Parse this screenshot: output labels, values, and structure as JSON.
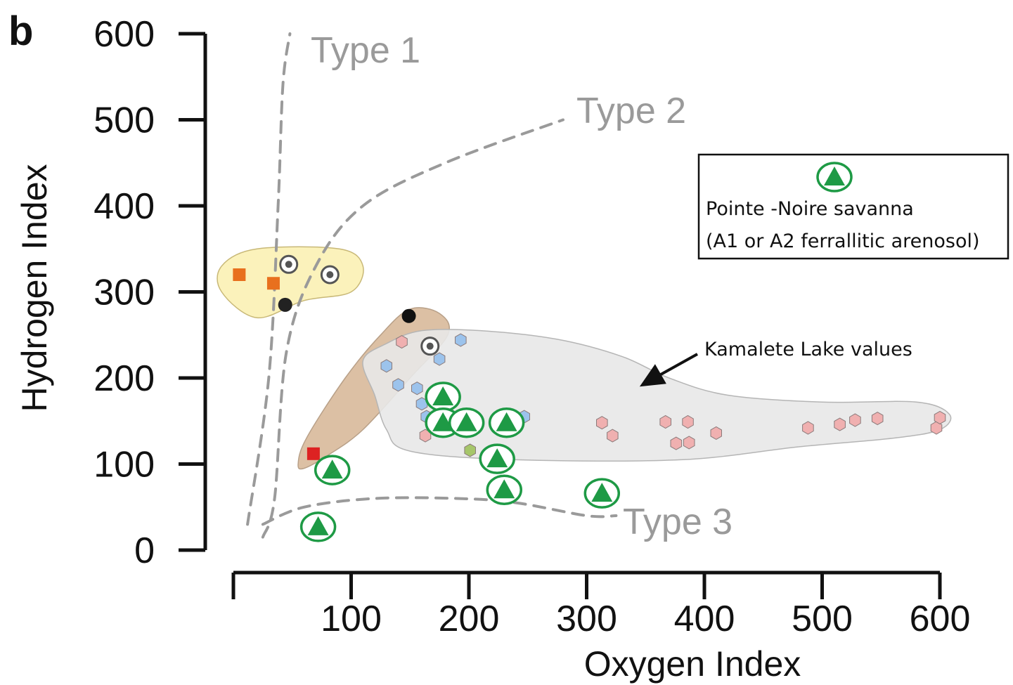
{
  "panel_label": "b",
  "chart_data": {
    "type": "scatter",
    "xlabel": "Oxygen Index",
    "ylabel": "Hydrogen Index",
    "xlim": [
      0,
      600
    ],
    "ylim": [
      0,
      600
    ],
    "x_ticks": [
      100,
      200,
      300,
      400,
      500,
      600
    ],
    "y_ticks": [
      0,
      100,
      200,
      300,
      400,
      500,
      600
    ],
    "kerogen_type_curves": [
      {
        "label": "Type 1",
        "points": [
          [
            12,
            30
          ],
          [
            30,
            200
          ],
          [
            38,
            400
          ],
          [
            42,
            540
          ],
          [
            48,
            600
          ]
        ]
      },
      {
        "label": "Type 2",
        "points": [
          [
            25,
            15
          ],
          [
            35,
            60
          ],
          [
            45,
            230
          ],
          [
            70,
            330
          ],
          [
            110,
            400
          ],
          [
            180,
            450
          ],
          [
            280,
            500
          ]
        ]
      },
      {
        "label": "Type 3",
        "points": [
          [
            25,
            30
          ],
          [
            60,
            50
          ],
          [
            120,
            60
          ],
          [
            190,
            60
          ],
          [
            240,
            55
          ],
          [
            300,
            40
          ],
          [
            325,
            40
          ]
        ]
      }
    ],
    "groups": [
      {
        "fill": "#fbf1b4",
        "stroke": "#c8b877",
        "outline": [
          [
            -10,
            330
          ],
          [
            20,
            350
          ],
          [
            90,
            350
          ],
          [
            110,
            330
          ],
          [
            100,
            300
          ],
          [
            60,
            290
          ],
          [
            20,
            270
          ],
          [
            -10,
            300
          ]
        ],
        "points": [
          {
            "x": 5,
            "y": 320,
            "marker": "square",
            "color": "#e8701e"
          },
          {
            "x": 34,
            "y": 310,
            "marker": "square",
            "color": "#e8701e"
          },
          {
            "x": 47,
            "y": 332,
            "marker": "ring",
            "color": "#555555"
          },
          {
            "x": 82,
            "y": 320,
            "marker": "ring",
            "color": "#555555"
          },
          {
            "x": 44,
            "y": 285,
            "marker": "dot",
            "color": "#222222"
          }
        ]
      },
      {
        "fill": "#d8b99a",
        "stroke": "#b8a088",
        "outline": [
          [
            55,
            100
          ],
          [
            62,
            130
          ],
          [
            95,
            200
          ],
          [
            125,
            250
          ],
          [
            150,
            280
          ],
          [
            175,
            275
          ],
          [
            182,
            250
          ],
          [
            150,
            200
          ],
          [
            110,
            140
          ],
          [
            80,
            110
          ],
          [
            60,
            95
          ]
        ],
        "points": [
          {
            "x": 149,
            "y": 272,
            "marker": "dot",
            "color": "#111111"
          },
          {
            "x": 68,
            "y": 112,
            "marker": "square",
            "color": "#dd2222"
          }
        ]
      },
      {
        "fill": "#e8e8e8",
        "stroke": "#b5b5b5",
        "outline": [
          [
            110,
            220
          ],
          [
            130,
            240
          ],
          [
            160,
            255
          ],
          [
            210,
            255
          ],
          [
            275,
            245
          ],
          [
            330,
            225
          ],
          [
            370,
            200
          ],
          [
            420,
            180
          ],
          [
            500,
            172
          ],
          [
            580,
            172
          ],
          [
            608,
            158
          ],
          [
            600,
            140
          ],
          [
            560,
            130
          ],
          [
            480,
            120
          ],
          [
            380,
            105
          ],
          [
            240,
            105
          ],
          [
            150,
            115
          ],
          [
            130,
            140
          ],
          [
            120,
            180
          ]
        ],
        "points": [
          {
            "x": 143,
            "y": 242,
            "marker": "hex",
            "color": "#f0b0b0"
          },
          {
            "x": 167,
            "y": 237,
            "marker": "ring",
            "color": "#555555"
          },
          {
            "x": 193,
            "y": 244,
            "marker": "hex",
            "color": "#9cc3ec"
          },
          {
            "x": 175,
            "y": 222,
            "marker": "hex",
            "color": "#9cc3ec"
          },
          {
            "x": 130,
            "y": 214,
            "marker": "hex",
            "color": "#9cc3ec"
          },
          {
            "x": 140,
            "y": 192,
            "marker": "hex",
            "color": "#9cc3ec"
          },
          {
            "x": 156,
            "y": 188,
            "marker": "hex",
            "color": "#9cc3ec"
          },
          {
            "x": 160,
            "y": 170,
            "marker": "hex",
            "color": "#9cc3ec"
          },
          {
            "x": 164,
            "y": 155,
            "marker": "hex",
            "color": "#9cc3ec"
          },
          {
            "x": 247,
            "y": 155,
            "marker": "hex",
            "color": "#9cc3ec"
          },
          {
            "x": 163,
            "y": 133,
            "marker": "hex",
            "color": "#f0b0b0"
          },
          {
            "x": 201,
            "y": 116,
            "marker": "hex",
            "color": "#a6c66a"
          },
          {
            "x": 313,
            "y": 148,
            "marker": "hex",
            "color": "#f0b0b0"
          },
          {
            "x": 322,
            "y": 133,
            "marker": "hex",
            "color": "#f0b0b0"
          },
          {
            "x": 367,
            "y": 149,
            "marker": "hex",
            "color": "#f0b0b0"
          },
          {
            "x": 386,
            "y": 149,
            "marker": "hex",
            "color": "#f0b0b0"
          },
          {
            "x": 376,
            "y": 124,
            "marker": "hex",
            "color": "#f0b0b0"
          },
          {
            "x": 387,
            "y": 125,
            "marker": "hex",
            "color": "#f0b0b0"
          },
          {
            "x": 410,
            "y": 136,
            "marker": "hex",
            "color": "#f0b0b0"
          },
          {
            "x": 488,
            "y": 142,
            "marker": "hex",
            "color": "#f0b0b0"
          },
          {
            "x": 515,
            "y": 146,
            "marker": "hex",
            "color": "#f0b0b0"
          },
          {
            "x": 528,
            "y": 151,
            "marker": "hex",
            "color": "#f0b0b0"
          },
          {
            "x": 547,
            "y": 153,
            "marker": "hex",
            "color": "#f0b0b0"
          },
          {
            "x": 597,
            "y": 142,
            "marker": "hex",
            "color": "#f0b0b0"
          },
          {
            "x": 600,
            "y": 154,
            "marker": "hex",
            "color": "#f0b0b0"
          }
        ]
      }
    ],
    "pointe_noire_points": [
      {
        "x": 178,
        "y": 178
      },
      {
        "x": 178,
        "y": 148
      },
      {
        "x": 198,
        "y": 148
      },
      {
        "x": 232,
        "y": 148
      },
      {
        "x": 224,
        "y": 106
      },
      {
        "x": 230,
        "y": 70
      },
      {
        "x": 84,
        "y": 93
      },
      {
        "x": 72,
        "y": 27
      },
      {
        "x": 313,
        "y": 66
      }
    ],
    "legend": {
      "placement": "right",
      "entries": [
        "Pointe -Noire savanna",
        "(A1 or A2 ferrallitic arenosol)"
      ],
      "marker_color": "#1e9a45"
    },
    "annotation": {
      "text": "Kamalete Lake values",
      "arrow_target": [
        345,
        190
      ]
    }
  }
}
